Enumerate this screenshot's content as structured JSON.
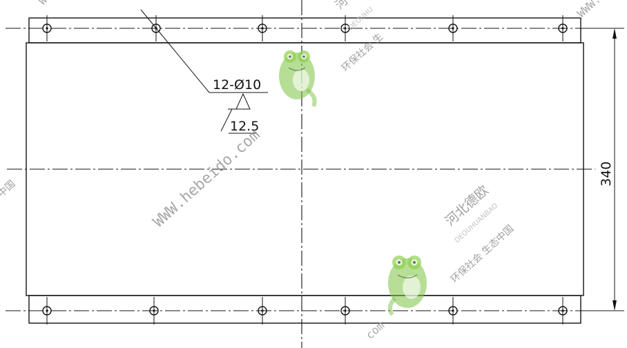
{
  "callout": {
    "holes_label": "12-Ø10",
    "roughness_label": "12.5"
  },
  "dimension": {
    "height_label": "340"
  },
  "watermark": {
    "url_main": "WWW.hebeido.com",
    "url_top_left": "WWW.",
    "url_top_right": "WWW.",
    "url_bottom": "com",
    "brand_cn": "河北德欧",
    "brand_en": "DEOUHUANBAO",
    "slogan_cn": "环保社会  生态中国",
    "slogan_top": "环保社会  生",
    "top_fragment_cn": "河",
    "top_fragment_en": "DEOUHU",
    "left_fragment": "中国"
  },
  "icons": [
    "frog-mascot-icon",
    "frog-mascot-icon"
  ],
  "colors": {
    "line": "#111111",
    "watermark_gray": "#9a9a9a",
    "frog_green": "#7cc242"
  }
}
